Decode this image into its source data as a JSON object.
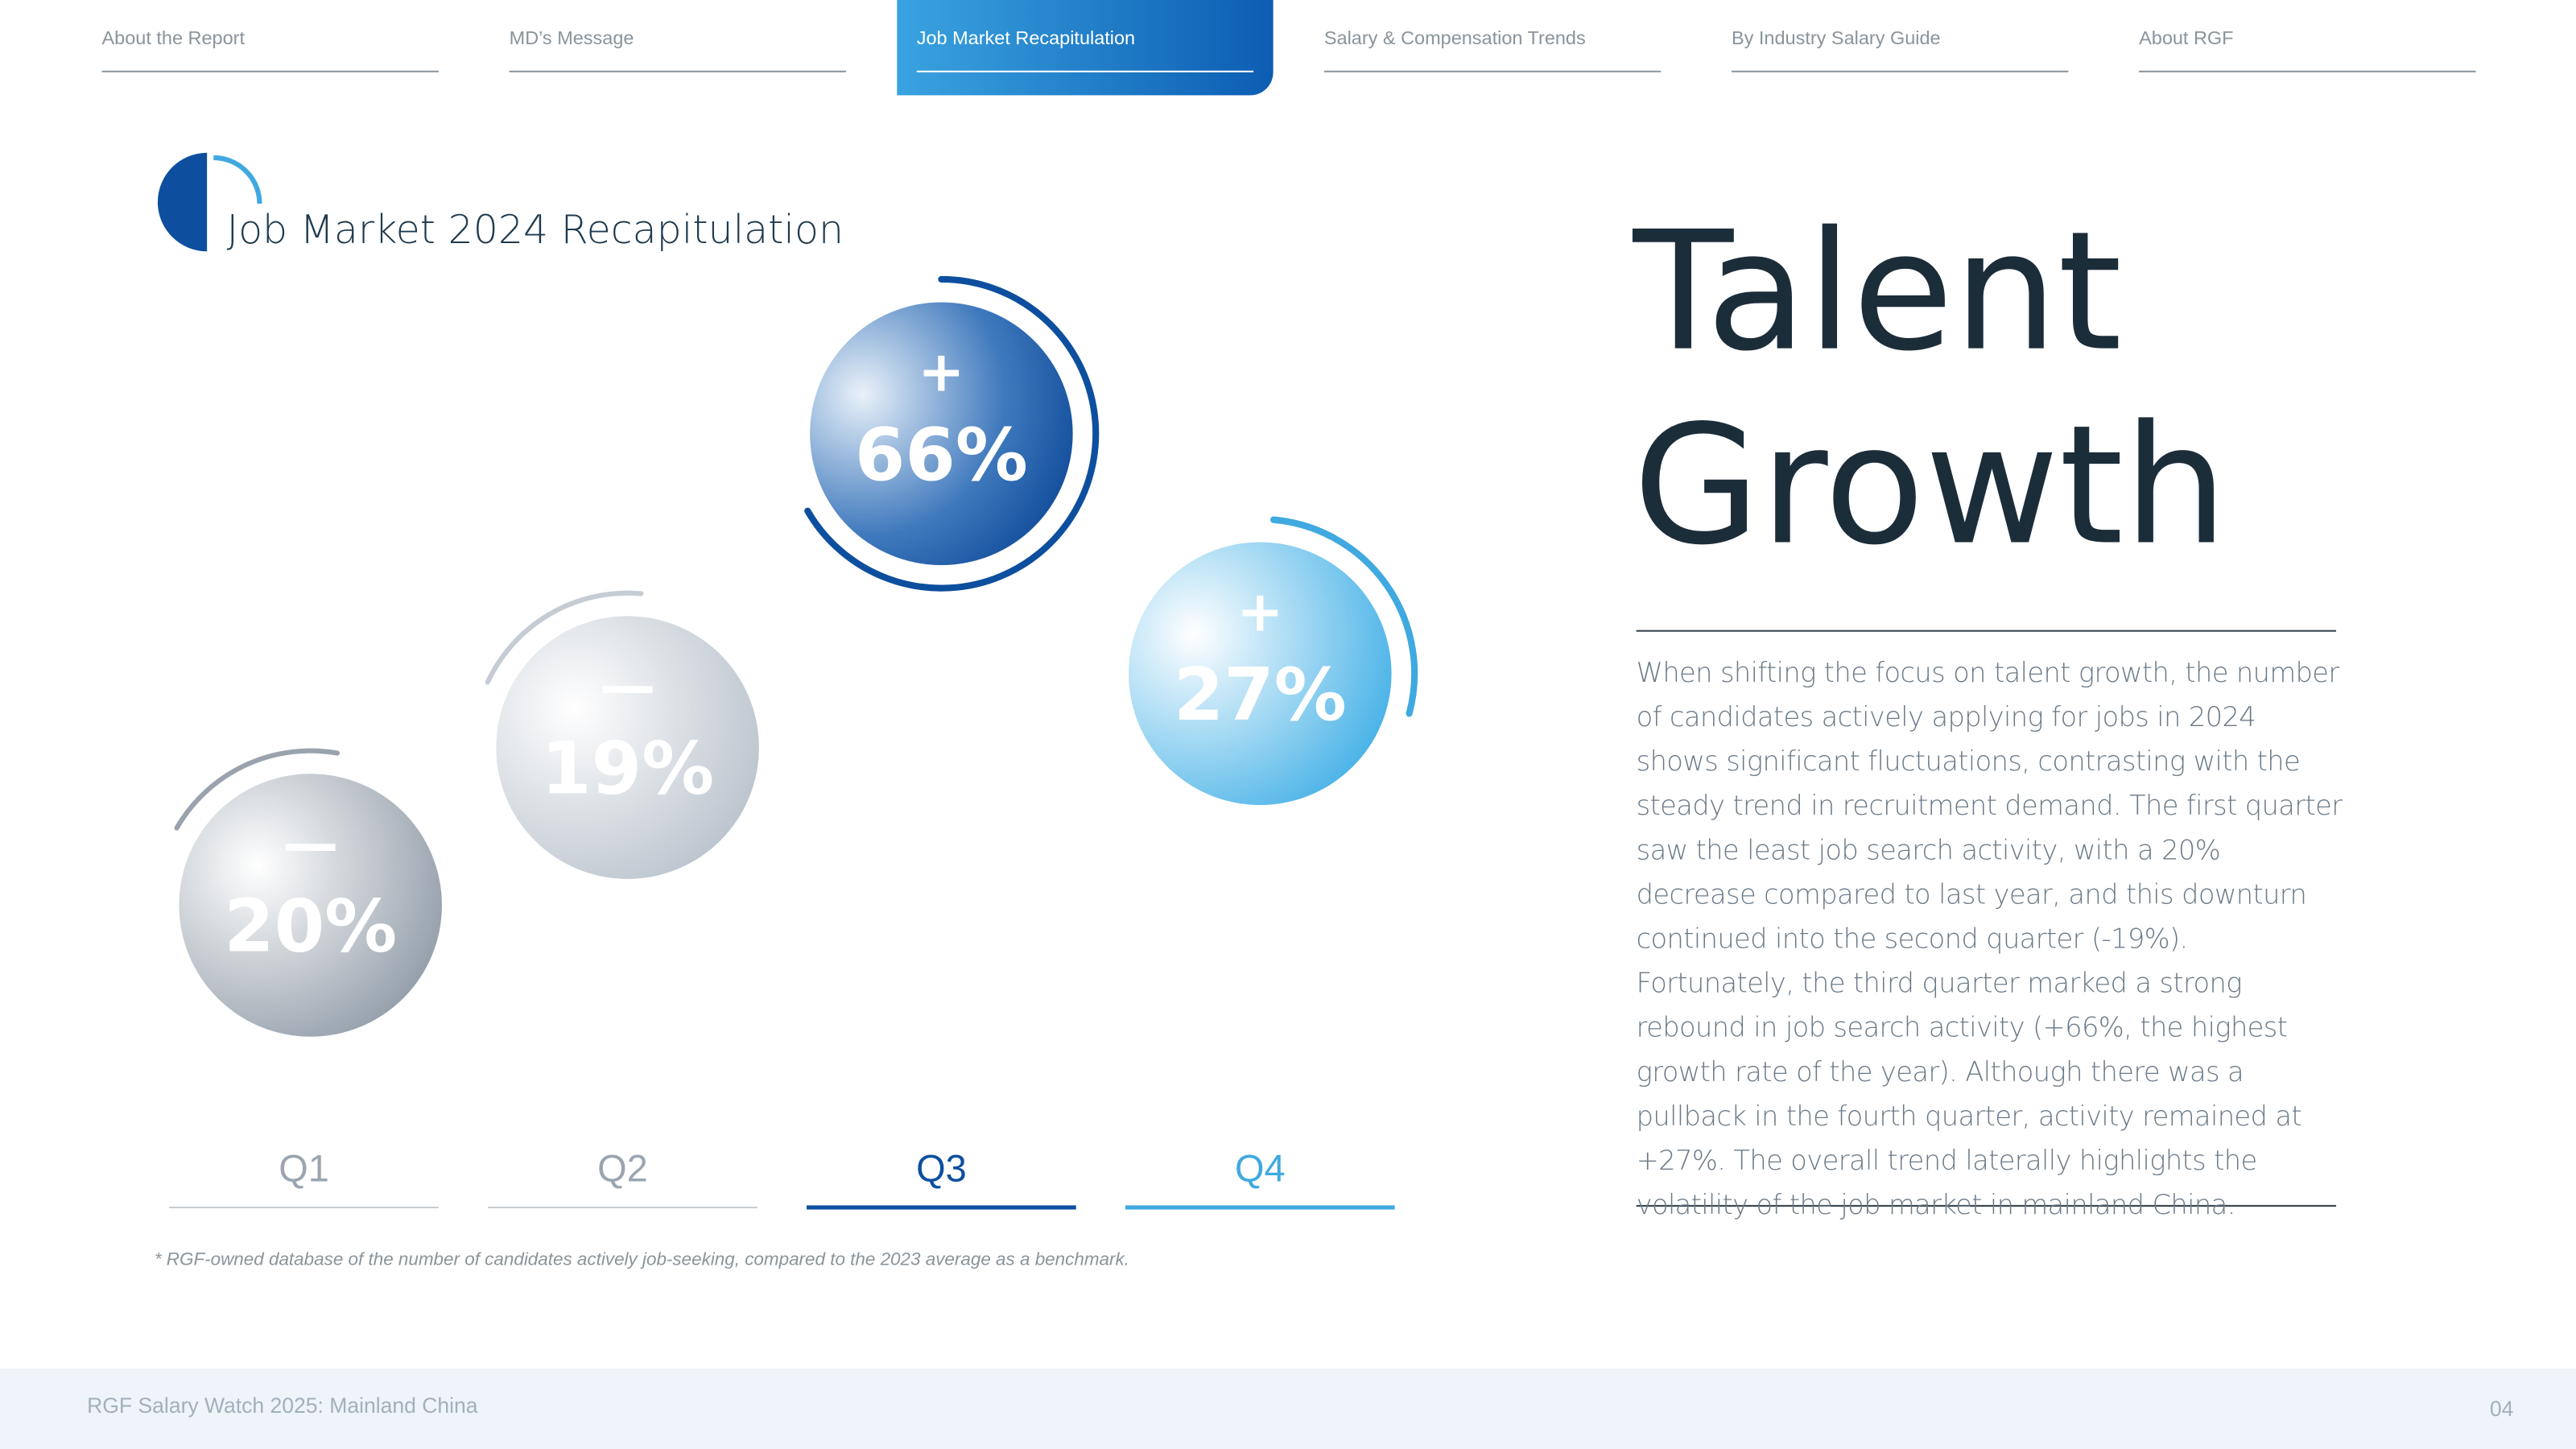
{
  "nav": [
    "About the Report",
    "MD’s Message",
    "Job Market Recapitulation",
    "Salary & Compensation Trends",
    "By Industry Salary Guide",
    "About RGF"
  ],
  "section_title": "Job Market 2024 Recapitulation",
  "quarters": [
    {
      "label": "Q1",
      "sign": "—",
      "value": "20%"
    },
    {
      "label": "Q2",
      "sign": "—",
      "value": "19%"
    },
    {
      "label": "Q3",
      "sign": "+",
      "value": "66%"
    },
    {
      "label": "Q4",
      "sign": "+",
      "value": "27%"
    }
  ],
  "footnote": "* RGF-owned database of the number of candidates actively job-seeking, compared to the 2023 average as a benchmark.",
  "heading": [
    "Talent",
    "Growth"
  ],
  "paragraph": "When shifting the focus on talent growth, the number of candidates actively applying for jobs in 2024 shows significant fluctuations, contrasting with the steady trend in recruitment demand. The first quarter saw the least job search activity, with a 20% decrease compared to last year, and this downturn continued into the second quarter (-19%). Fortunately, the third quarter marked a strong rebound in job search activity (+66%, the highest growth rate of the year). Although there was a pullback in the fourth quarter, activity remained at +27%. The overall trend laterally highlights the volatility of the job market in mainland China.",
  "footer": {
    "title": "RGF Salary Watch 2025: Mainland China",
    "page": "04"
  }
}
